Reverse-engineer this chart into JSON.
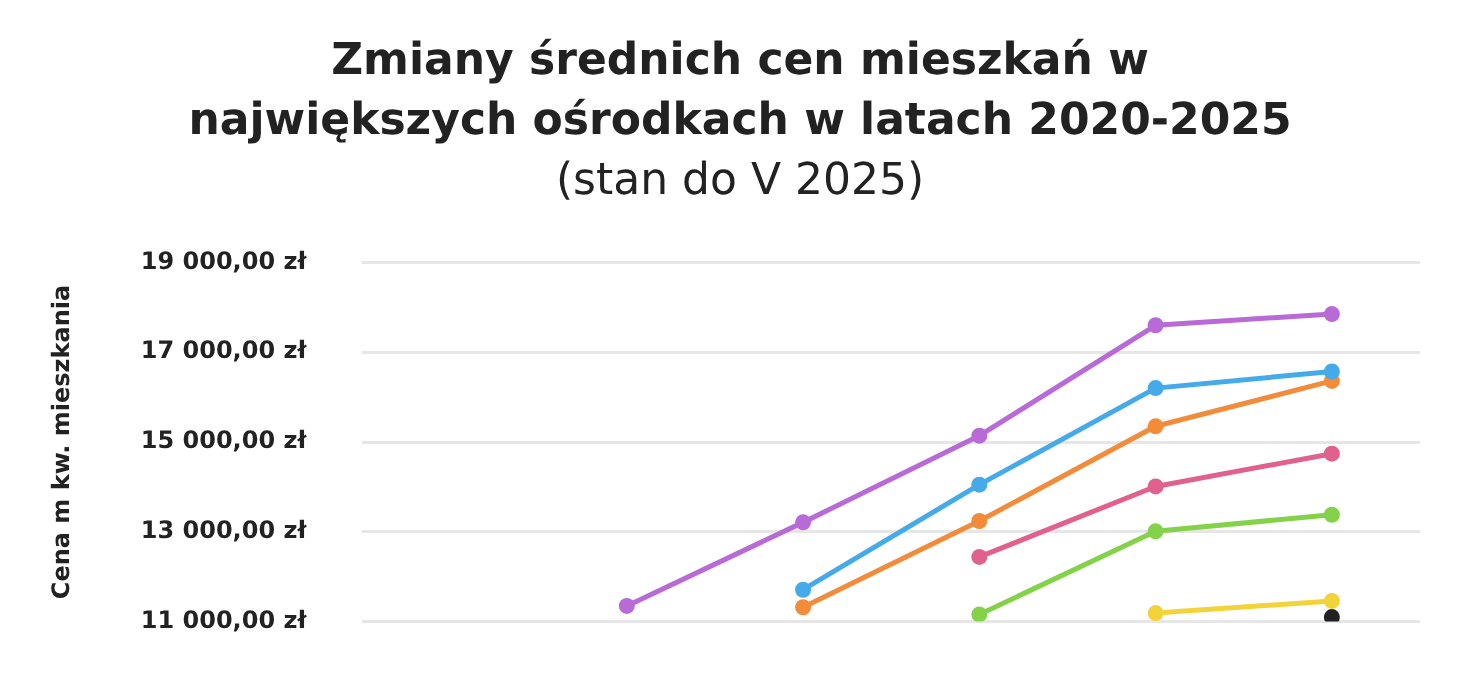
{
  "chart_data": {
    "type": "line",
    "title": "Zmiany średnich cen mieszkań w największych ośrodkach w latach 2020-2025",
    "subtitle": "(stan do V 2025)",
    "ylabel": "Cena m kw. mieszkania",
    "categories": [
      null,
      null,
      null,
      null,
      null,
      null
    ],
    "series": [
      {
        "color": "#b86ad6",
        "values": [
          null,
          11350,
          13210,
          15140,
          17600,
          17850
        ]
      },
      {
        "color": "#45aaea",
        "values": [
          null,
          null,
          11710,
          14050,
          16200,
          16570
        ]
      },
      {
        "color": "#f28b3a",
        "values": [
          null,
          null,
          11320,
          13240,
          15350,
          16360
        ]
      },
      {
        "color": "#e0608e",
        "values": [
          null,
          null,
          null,
          12440,
          14010,
          14740
        ]
      },
      {
        "color": "#84d24a",
        "values": [
          null,
          null,
          null,
          11160,
          13010,
          13380
        ]
      },
      {
        "color": "#f2d43a",
        "values": [
          null,
          null,
          null,
          null,
          11190,
          11460
        ]
      },
      {
        "color": "#222222",
        "values": [
          null,
          null,
          null,
          null,
          null,
          11100
        ]
      }
    ],
    "ylim": [
      11000,
      19000
    ],
    "yticks": [
      {
        "value": 11000,
        "label": "11 000,00 zł"
      },
      {
        "value": 13000,
        "label": "13 000,00 zł"
      },
      {
        "value": 15000,
        "label": "15 000,00 zł"
      },
      {
        "value": 17000,
        "label": "17 000,00 zł"
      },
      {
        "value": 19000,
        "label": "19 000,00 zł"
      }
    ],
    "grid": "y",
    "legend": false,
    "tick_labels": "y",
    "marker": "circle",
    "line_style": "solid"
  }
}
